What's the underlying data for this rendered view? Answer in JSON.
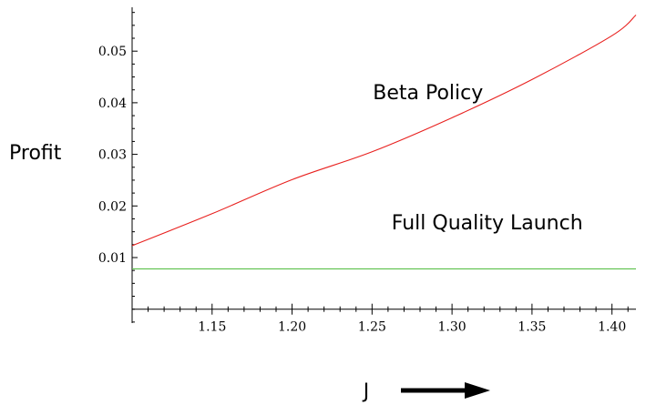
{
  "chart_data": {
    "type": "line",
    "xlabel": "J",
    "ylabel": "Profit",
    "xlim": [
      1.1,
      1.415
    ],
    "ylim": [
      -0.0027,
      0.0585
    ],
    "xticks": [
      1.15,
      1.2,
      1.25,
      1.3,
      1.35,
      1.4
    ],
    "xtick_labels": [
      "1.15",
      "1.20",
      "1.25",
      "1.30",
      "1.35",
      "1.40"
    ],
    "yticks": [
      0.01,
      0.02,
      0.03,
      0.04,
      0.05
    ],
    "ytick_labels": [
      "0.01",
      "0.02",
      "0.03",
      "0.04",
      "0.05"
    ],
    "grid": false,
    "series": [
      {
        "color": "#e8201e",
        "x": [
          1.1,
          1.15,
          1.2,
          1.25,
          1.3,
          1.35,
          1.4,
          1.415
        ],
        "values": [
          0.0123,
          0.0185,
          0.0251,
          0.0305,
          0.0371,
          0.0445,
          0.053,
          0.057
        ]
      },
      {
        "color": "#5bc04a",
        "x": [
          1.1,
          1.415
        ],
        "values": [
          0.0078,
          0.0078
        ]
      }
    ],
    "annotations": [
      {
        "text": "Beta Policy",
        "x": 1.285,
        "y": 0.0407
      },
      {
        "text": "Full Quality Launch",
        "x": 1.322,
        "y": 0.0155
      }
    ],
    "arrow_color": "#000000"
  }
}
